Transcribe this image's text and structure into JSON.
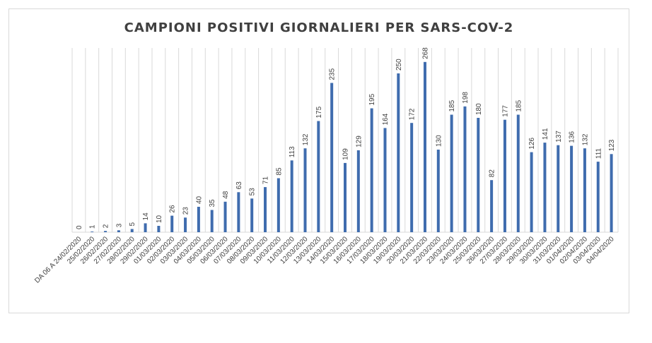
{
  "chart_data": {
    "type": "bar",
    "title": "CAMPIONI POSITIVI GIORNALIERI PER SARS-COV-2",
    "xlabel": "",
    "ylabel": "",
    "ylim": [
      0,
      290
    ],
    "grid": "vertical",
    "legend": "none",
    "bar_color": "#3f6cae",
    "categories": [
      "DA 06 A 24/02/2020",
      "25/02/2020",
      "26/02/2020",
      "27/02/2020",
      "28/02/2020",
      "29/02/2020",
      "01/03/2020",
      "02/03/2020",
      "03/03/2020",
      "04/03/2020",
      "05/03/2020",
      "06/03/2020",
      "07/03/2020",
      "08/03/2020",
      "09/03/2020",
      "10/03/2020",
      "11/03/2020",
      "12/03/2020",
      "13/03/2020",
      "14/03/2020",
      "15/03/2020",
      "16/03/2020",
      "17/03/2020",
      "18/03/2020",
      "19/03/2020",
      "20/03/2020",
      "21/03/2020",
      "22/03/2020",
      "23/03/2020",
      "24/03/2020",
      "25/03/2020",
      "26/03/2020",
      "27/03/2020",
      "28/03/2020",
      "29/03/2020",
      "30/03/2020",
      "31/03/2020",
      "01/04/2020",
      "02/04/2020",
      "03/04/2020",
      "04/04/2020"
    ],
    "values": [
      0,
      1,
      2,
      3,
      5,
      14,
      10,
      26,
      23,
      40,
      35,
      48,
      63,
      53,
      71,
      85,
      113,
      132,
      175,
      235,
      109,
      129,
      195,
      164,
      250,
      172,
      268,
      130,
      185,
      198,
      180,
      82,
      177,
      185,
      126,
      141,
      137,
      136,
      132,
      111,
      123
    ]
  }
}
